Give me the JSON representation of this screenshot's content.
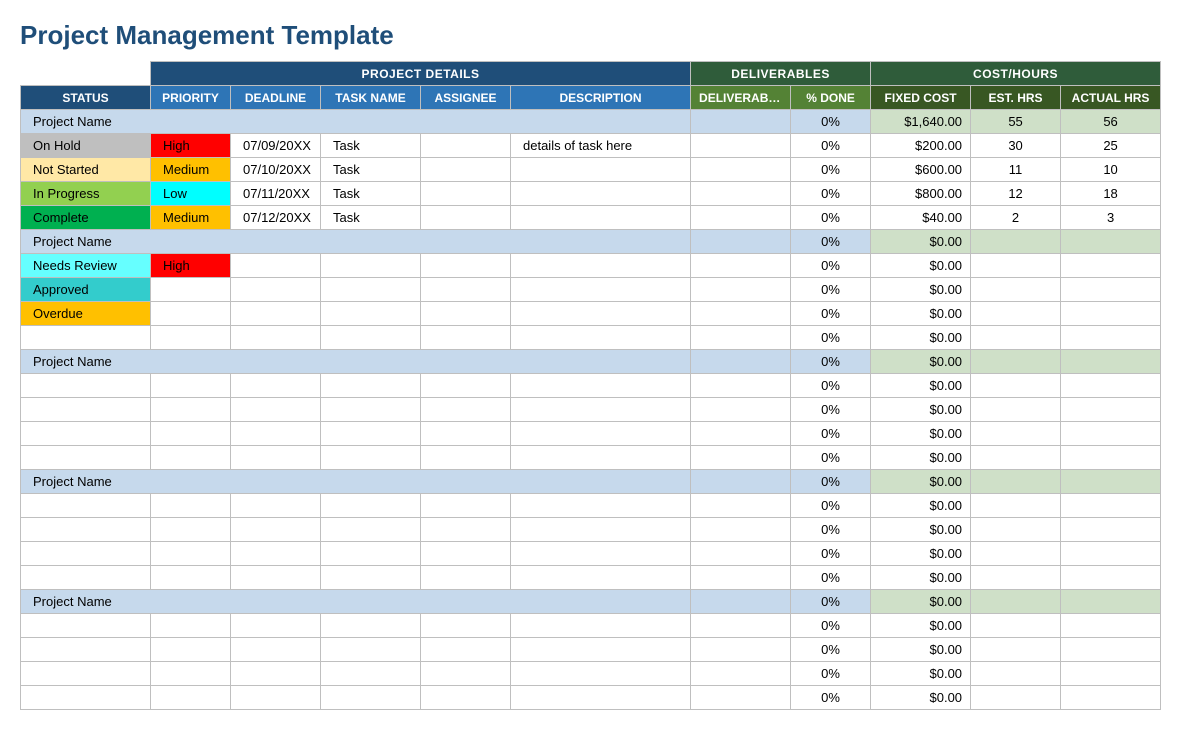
{
  "title": "Project Management Template",
  "colors": {
    "title": "#1f4e79",
    "groupProjectDetails": "#1f4e79",
    "groupDeliverables": "#2f5c3a",
    "groupCostHours": "#2f5c3a",
    "colHeaderStatus": "#1f4e79",
    "colHeaderPD": "#2e75b6",
    "colHeaderDeliv": "#548235",
    "colHeaderCost": "#385723",
    "projectBlue": "#c6d9ec",
    "projectGreen": "#cfe0c8",
    "border": "#bfbfbf",
    "statusColors": {
      "On Hold": "#bfbfbf",
      "Not Started": "#ffe8a6",
      "In Progress": "#92d050",
      "Complete": "#00b050",
      "Needs Review": "#66ffff",
      "Approved": "#33cccc",
      "Overdue": "#ffc000"
    },
    "priorityColors": {
      "High": "#ff0000",
      "Medium": "#ffc000",
      "Low": "#00ffff"
    }
  },
  "groupHeaders": {
    "projectDetails": "PROJECT DETAILS",
    "deliverables": "DELIVERABLES",
    "costHours": "COST/HOURS"
  },
  "columns": {
    "status": "STATUS",
    "priority": "PRIORITY",
    "deadline": "DEADLINE",
    "taskName": "TASK NAME",
    "assignee": "ASSIGNEE",
    "description": "DESCRIPTION",
    "deliverable": "DELIVERABLE",
    "pctDone": "% DONE",
    "fixedCost": "FIXED COST",
    "estHrs": "EST. HRS",
    "actualHrs": "ACTUAL HRS"
  },
  "rows": [
    {
      "type": "project",
      "status": "Project Name",
      "pctDone": "0%",
      "fixedCost": "$1,640.00",
      "estHrs": "55",
      "actualHrs": "56"
    },
    {
      "type": "task",
      "status": "On Hold",
      "priority": "High",
      "deadline": "07/09/20XX",
      "taskName": "Task",
      "assignee": "",
      "description": "details of task here",
      "deliverable": "",
      "pctDone": "0%",
      "fixedCost": "$200.00",
      "estHrs": "30",
      "actualHrs": "25"
    },
    {
      "type": "task",
      "status": "Not Started",
      "priority": "Medium",
      "deadline": "07/10/20XX",
      "taskName": "Task",
      "assignee": "",
      "description": "",
      "deliverable": "",
      "pctDone": "0%",
      "fixedCost": "$600.00",
      "estHrs": "11",
      "actualHrs": "10"
    },
    {
      "type": "task",
      "status": "In Progress",
      "priority": "Low",
      "deadline": "07/11/20XX",
      "taskName": "Task",
      "assignee": "",
      "description": "",
      "deliverable": "",
      "pctDone": "0%",
      "fixedCost": "$800.00",
      "estHrs": "12",
      "actualHrs": "18"
    },
    {
      "type": "task",
      "status": "Complete",
      "priority": "Medium",
      "deadline": "07/12/20XX",
      "taskName": "Task",
      "assignee": "",
      "description": "",
      "deliverable": "",
      "pctDone": "0%",
      "fixedCost": "$40.00",
      "estHrs": "2",
      "actualHrs": "3"
    },
    {
      "type": "project",
      "status": "Project Name",
      "pctDone": "0%",
      "fixedCost": "$0.00",
      "estHrs": "",
      "actualHrs": ""
    },
    {
      "type": "task",
      "status": "Needs Review",
      "priority": "High",
      "deadline": "",
      "taskName": "",
      "assignee": "",
      "description": "",
      "deliverable": "",
      "pctDone": "0%",
      "fixedCost": "$0.00",
      "estHrs": "",
      "actualHrs": ""
    },
    {
      "type": "task",
      "status": "Approved",
      "priority": "",
      "deadline": "",
      "taskName": "",
      "assignee": "",
      "description": "",
      "deliverable": "",
      "pctDone": "0%",
      "fixedCost": "$0.00",
      "estHrs": "",
      "actualHrs": ""
    },
    {
      "type": "task",
      "status": "Overdue",
      "priority": "",
      "deadline": "",
      "taskName": "",
      "assignee": "",
      "description": "",
      "deliverable": "",
      "pctDone": "0%",
      "fixedCost": "$0.00",
      "estHrs": "",
      "actualHrs": ""
    },
    {
      "type": "task",
      "status": "",
      "priority": "",
      "deadline": "",
      "taskName": "",
      "assignee": "",
      "description": "",
      "deliverable": "",
      "pctDone": "0%",
      "fixedCost": "$0.00",
      "estHrs": "",
      "actualHrs": ""
    },
    {
      "type": "project",
      "status": "Project Name",
      "pctDone": "0%",
      "fixedCost": "$0.00",
      "estHrs": "",
      "actualHrs": ""
    },
    {
      "type": "task",
      "status": "",
      "priority": "",
      "deadline": "",
      "taskName": "",
      "assignee": "",
      "description": "",
      "deliverable": "",
      "pctDone": "0%",
      "fixedCost": "$0.00",
      "estHrs": "",
      "actualHrs": ""
    },
    {
      "type": "task",
      "status": "",
      "priority": "",
      "deadline": "",
      "taskName": "",
      "assignee": "",
      "description": "",
      "deliverable": "",
      "pctDone": "0%",
      "fixedCost": "$0.00",
      "estHrs": "",
      "actualHrs": ""
    },
    {
      "type": "task",
      "status": "",
      "priority": "",
      "deadline": "",
      "taskName": "",
      "assignee": "",
      "description": "",
      "deliverable": "",
      "pctDone": "0%",
      "fixedCost": "$0.00",
      "estHrs": "",
      "actualHrs": ""
    },
    {
      "type": "task",
      "status": "",
      "priority": "",
      "deadline": "",
      "taskName": "",
      "assignee": "",
      "description": "",
      "deliverable": "",
      "pctDone": "0%",
      "fixedCost": "$0.00",
      "estHrs": "",
      "actualHrs": ""
    },
    {
      "type": "project",
      "status": "Project Name",
      "pctDone": "0%",
      "fixedCost": "$0.00",
      "estHrs": "",
      "actualHrs": ""
    },
    {
      "type": "task",
      "status": "",
      "priority": "",
      "deadline": "",
      "taskName": "",
      "assignee": "",
      "description": "",
      "deliverable": "",
      "pctDone": "0%",
      "fixedCost": "$0.00",
      "estHrs": "",
      "actualHrs": ""
    },
    {
      "type": "task",
      "status": "",
      "priority": "",
      "deadline": "",
      "taskName": "",
      "assignee": "",
      "description": "",
      "deliverable": "",
      "pctDone": "0%",
      "fixedCost": "$0.00",
      "estHrs": "",
      "actualHrs": ""
    },
    {
      "type": "task",
      "status": "",
      "priority": "",
      "deadline": "",
      "taskName": "",
      "assignee": "",
      "description": "",
      "deliverable": "",
      "pctDone": "0%",
      "fixedCost": "$0.00",
      "estHrs": "",
      "actualHrs": ""
    },
    {
      "type": "task",
      "status": "",
      "priority": "",
      "deadline": "",
      "taskName": "",
      "assignee": "",
      "description": "",
      "deliverable": "",
      "pctDone": "0%",
      "fixedCost": "$0.00",
      "estHrs": "",
      "actualHrs": ""
    },
    {
      "type": "project",
      "status": "Project Name",
      "pctDone": "0%",
      "fixedCost": "$0.00",
      "estHrs": "",
      "actualHrs": ""
    },
    {
      "type": "task",
      "status": "",
      "priority": "",
      "deadline": "",
      "taskName": "",
      "assignee": "",
      "description": "",
      "deliverable": "",
      "pctDone": "0%",
      "fixedCost": "$0.00",
      "estHrs": "",
      "actualHrs": ""
    },
    {
      "type": "task",
      "status": "",
      "priority": "",
      "deadline": "",
      "taskName": "",
      "assignee": "",
      "description": "",
      "deliverable": "",
      "pctDone": "0%",
      "fixedCost": "$0.00",
      "estHrs": "",
      "actualHrs": ""
    },
    {
      "type": "task",
      "status": "",
      "priority": "",
      "deadline": "",
      "taskName": "",
      "assignee": "",
      "description": "",
      "deliverable": "",
      "pctDone": "0%",
      "fixedCost": "$0.00",
      "estHrs": "",
      "actualHrs": ""
    },
    {
      "type": "task",
      "status": "",
      "priority": "",
      "deadline": "",
      "taskName": "",
      "assignee": "",
      "description": "",
      "deliverable": "",
      "pctDone": "0%",
      "fixedCost": "$0.00",
      "estHrs": "",
      "actualHrs": ""
    }
  ]
}
